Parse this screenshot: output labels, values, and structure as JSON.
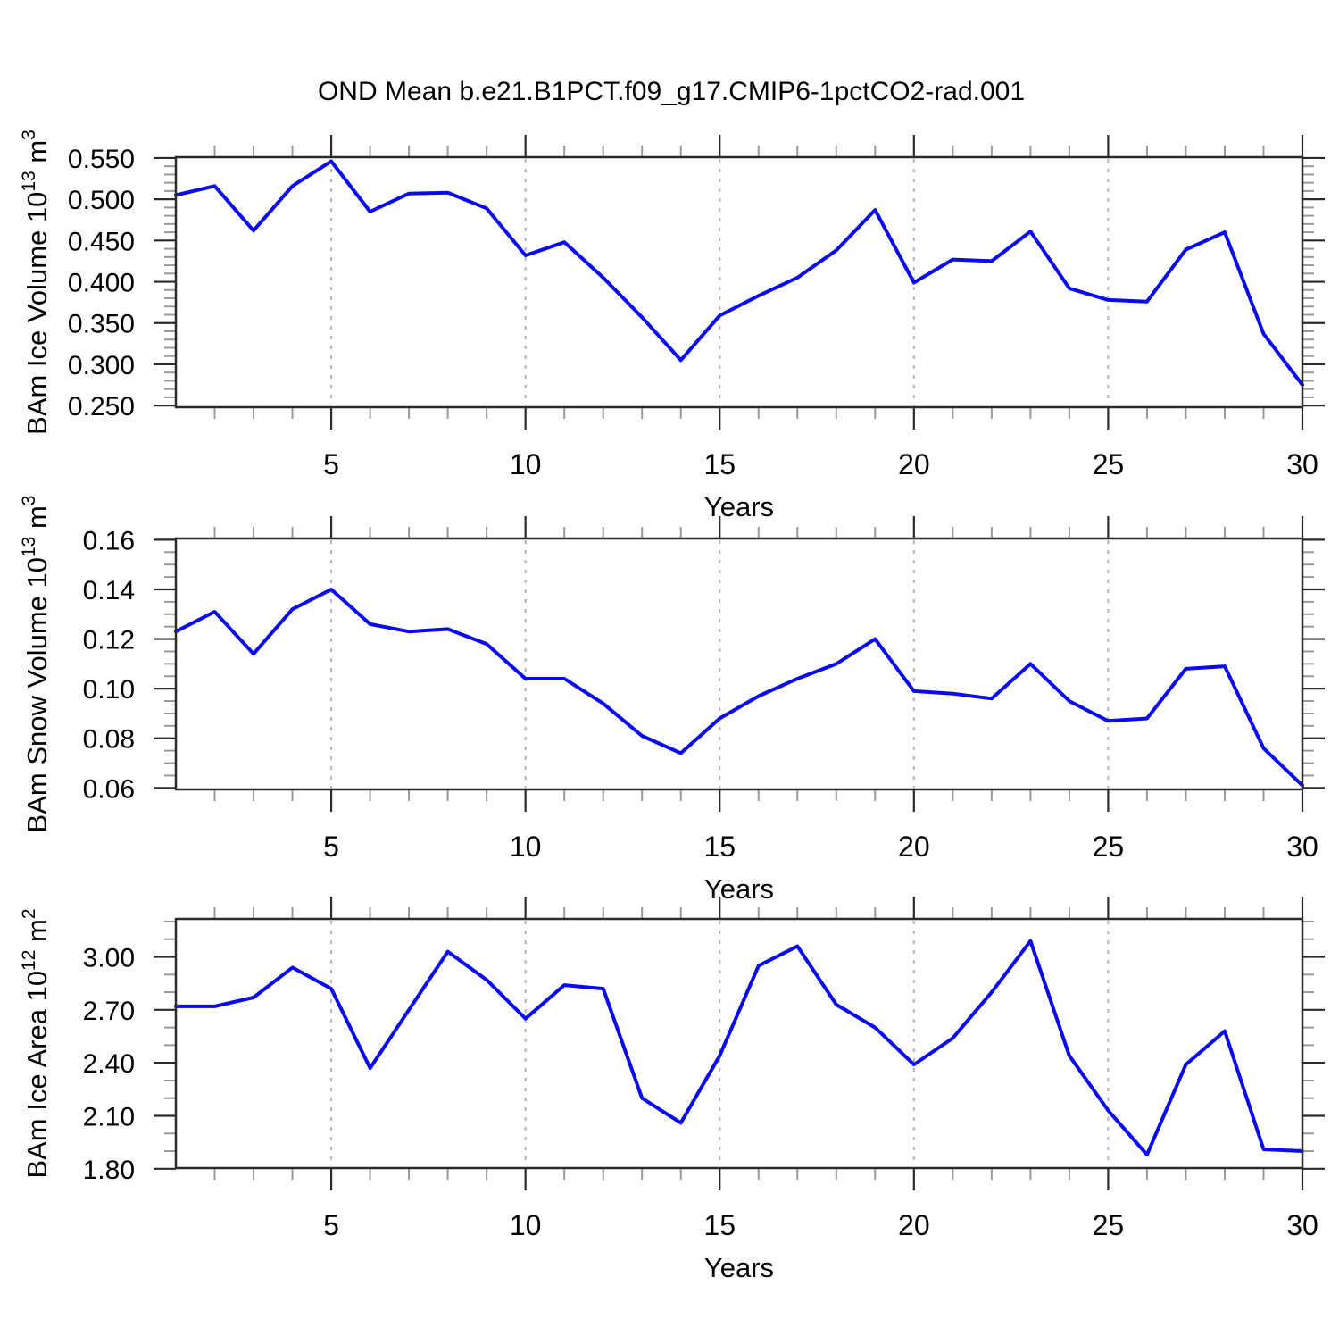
{
  "title": "OND Mean b.e21.B1PCT.f09_g17.CMIP6-1pctCO2-rad.001",
  "line_color": "#0a0af0",
  "x_axis": {
    "label": "Years",
    "range": [
      1,
      30
    ],
    "major_ticks": [
      5,
      10,
      15,
      20,
      25,
      30
    ],
    "major_tick_labels": [
      "5",
      "10",
      "15",
      "20",
      "25",
      "30"
    ],
    "minor_step": 1,
    "grid_years": [
      5,
      10,
      15,
      20,
      25
    ]
  },
  "chart_data": [
    {
      "type": "line",
      "name": "bam-ice-volume",
      "ylabel": "BAm Ice Volume 10^13 m^3",
      "ylabel_parts": [
        {
          "t": "BAm Ice Volume 10"
        },
        {
          "t": "13",
          "sup": true
        },
        {
          "t": " m"
        },
        {
          "t": "3",
          "sup": true
        }
      ],
      "xlabel": "Years",
      "ylim": [
        0.248,
        0.551
      ],
      "ytick_values": [
        0.25,
        0.3,
        0.35,
        0.4,
        0.45,
        0.5,
        0.55
      ],
      "ytick_labels": [
        "0.250",
        "0.300",
        "0.350",
        "0.400",
        "0.450",
        "0.500",
        "0.550"
      ],
      "y_minor_step": 0.01,
      "grid": "x-dashed",
      "x": [
        1,
        2,
        3,
        4,
        5,
        6,
        7,
        8,
        9,
        10,
        11,
        12,
        13,
        14,
        15,
        16,
        17,
        18,
        19,
        20,
        21,
        22,
        23,
        24,
        25,
        26,
        27,
        28,
        29,
        30
      ],
      "values": [
        0.505,
        0.516,
        0.462,
        0.516,
        0.546,
        0.485,
        0.507,
        0.508,
        0.489,
        0.432,
        0.448,
        0.405,
        0.357,
        0.305,
        0.359,
        0.383,
        0.405,
        0.438,
        0.487,
        0.399,
        0.427,
        0.425,
        0.461,
        0.392,
        0.378,
        0.376,
        0.439,
        0.46,
        0.337,
        0.275
      ]
    },
    {
      "type": "line",
      "name": "bam-snow-volume",
      "ylabel": "BAm Snow Volume 10^13 m^3",
      "ylabel_parts": [
        {
          "t": "BAm Snow Volume 10"
        },
        {
          "t": "13",
          "sup": true
        },
        {
          "t": " m"
        },
        {
          "t": "3",
          "sup": true
        }
      ],
      "xlabel": "Years",
      "ylim": [
        0.0594,
        0.1605
      ],
      "ytick_values": [
        0.06,
        0.08,
        0.1,
        0.12,
        0.14,
        0.16
      ],
      "ytick_labels": [
        "0.06",
        "0.08",
        "0.10",
        "0.12",
        "0.14",
        "0.16"
      ],
      "y_minor_step": 0.005,
      "grid": "x-dashed",
      "x": [
        1,
        2,
        3,
        4,
        5,
        6,
        7,
        8,
        9,
        10,
        11,
        12,
        13,
        14,
        15,
        16,
        17,
        18,
        19,
        20,
        21,
        22,
        23,
        24,
        25,
        26,
        27,
        28,
        29,
        30
      ],
      "values": [
        0.123,
        0.131,
        0.114,
        0.132,
        0.14,
        0.126,
        0.123,
        0.124,
        0.118,
        0.104,
        0.104,
        0.094,
        0.081,
        0.074,
        0.088,
        0.097,
        0.104,
        0.11,
        0.12,
        0.099,
        0.098,
        0.096,
        0.11,
        0.095,
        0.087,
        0.088,
        0.108,
        0.109,
        0.076,
        0.061
      ]
    },
    {
      "type": "line",
      "name": "bam-ice-area",
      "ylabel": "BAm Ice Area 10^12 m^2",
      "ylabel_parts": [
        {
          "t": "BAm Ice Area 10"
        },
        {
          "t": "12",
          "sup": true
        },
        {
          "t": " m"
        },
        {
          "t": "2",
          "sup": true
        }
      ],
      "xlabel": "Years",
      "ylim": [
        1.804,
        3.215
      ],
      "ytick_values": [
        1.8,
        2.1,
        2.4,
        2.7,
        3.0
      ],
      "ytick_labels": [
        "1.80",
        "2.10",
        "2.40",
        "2.70",
        "3.00"
      ],
      "y_minor_step": 0.1,
      "grid": "x-dashed",
      "x": [
        1,
        2,
        3,
        4,
        5,
        6,
        7,
        8,
        9,
        10,
        11,
        12,
        13,
        14,
        15,
        16,
        17,
        18,
        19,
        20,
        21,
        22,
        23,
        24,
        25,
        26,
        27,
        28,
        29,
        30
      ],
      "values": [
        2.72,
        2.72,
        2.77,
        2.94,
        2.82,
        2.37,
        2.7,
        3.03,
        2.87,
        2.65,
        2.84,
        2.82,
        2.2,
        2.06,
        2.44,
        2.95,
        3.06,
        2.73,
        2.6,
        2.39,
        2.54,
        2.8,
        3.09,
        2.44,
        2.13,
        1.88,
        2.39,
        2.58,
        1.91,
        1.9
      ]
    }
  ]
}
